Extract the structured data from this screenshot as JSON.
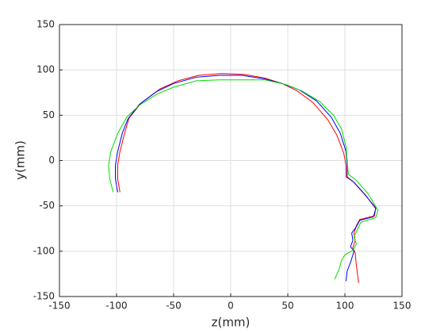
{
  "chart_data": {
    "type": "line",
    "xlabel": "z(mm)",
    "ylabel": "y(mm)",
    "xlim": [
      -150,
      150
    ],
    "ylim": [
      -150,
      150
    ],
    "xticks": [
      -150,
      -100,
      -50,
      0,
      50,
      100,
      150
    ],
    "yticks": [
      -150,
      -100,
      -50,
      0,
      50,
      100,
      150
    ],
    "grid": true,
    "series": [
      {
        "color": "#ff0000",
        "x": [
          -97,
          -99,
          -99,
          -97,
          -93,
          -89,
          -78,
          -62,
          -46,
          -28,
          -8,
          12,
          30,
          45,
          58,
          72,
          85,
          93,
          99,
          101,
          101,
          107,
          117,
          127,
          126,
          113,
          110,
          108,
          109,
          107,
          109,
          110,
          111,
          112
        ],
        "values": [
          -35,
          -20,
          -5,
          10,
          30,
          47,
          64,
          79,
          88,
          94,
          96,
          95,
          91,
          85,
          77,
          64,
          45,
          28,
          8,
          -5,
          -18,
          -23,
          -37,
          -52,
          -61,
          -65,
          -72,
          -80,
          -88,
          -96,
          -102,
          -115,
          -125,
          -135
        ]
      },
      {
        "color": "#0000ff",
        "x": [
          -99,
          -101,
          -101,
          -99,
          -95,
          -90,
          -80,
          -65,
          -50,
          -30,
          -10,
          10,
          30,
          45,
          60,
          75,
          88,
          96,
          101,
          102,
          102,
          108,
          118,
          127,
          125,
          113,
          110,
          106,
          107,
          105,
          108,
          105,
          102,
          101
        ],
        "values": [
          -35,
          -20,
          -5,
          10,
          30,
          46,
          62,
          76,
          85,
          92,
          94,
          94,
          90,
          85,
          78,
          66,
          48,
          30,
          10,
          -5,
          -18,
          -24,
          -38,
          -53,
          -62,
          -66,
          -73,
          -80,
          -88,
          -95,
          -100,
          -112,
          -122,
          -133
        ]
      },
      {
        "color": "#00dd00",
        "x": [
          -103,
          -106,
          -107,
          -105,
          -99,
          -91,
          -80,
          -65,
          -50,
          -30,
          -10,
          10,
          30,
          48,
          62,
          78,
          90,
          97,
          101,
          102,
          103,
          110,
          120,
          129,
          127,
          114,
          111,
          108,
          110,
          107,
          100,
          97,
          95,
          91
        ],
        "values": [
          -35,
          -20,
          -5,
          10,
          30,
          48,
          61,
          73,
          81,
          88,
          89,
          89,
          89,
          84,
          77,
          65,
          50,
          35,
          15,
          0,
          -15,
          -22,
          -36,
          -55,
          -63,
          -68,
          -76,
          -84,
          -92,
          -99,
          -104,
          -110,
          -120,
          -131
        ]
      }
    ]
  }
}
